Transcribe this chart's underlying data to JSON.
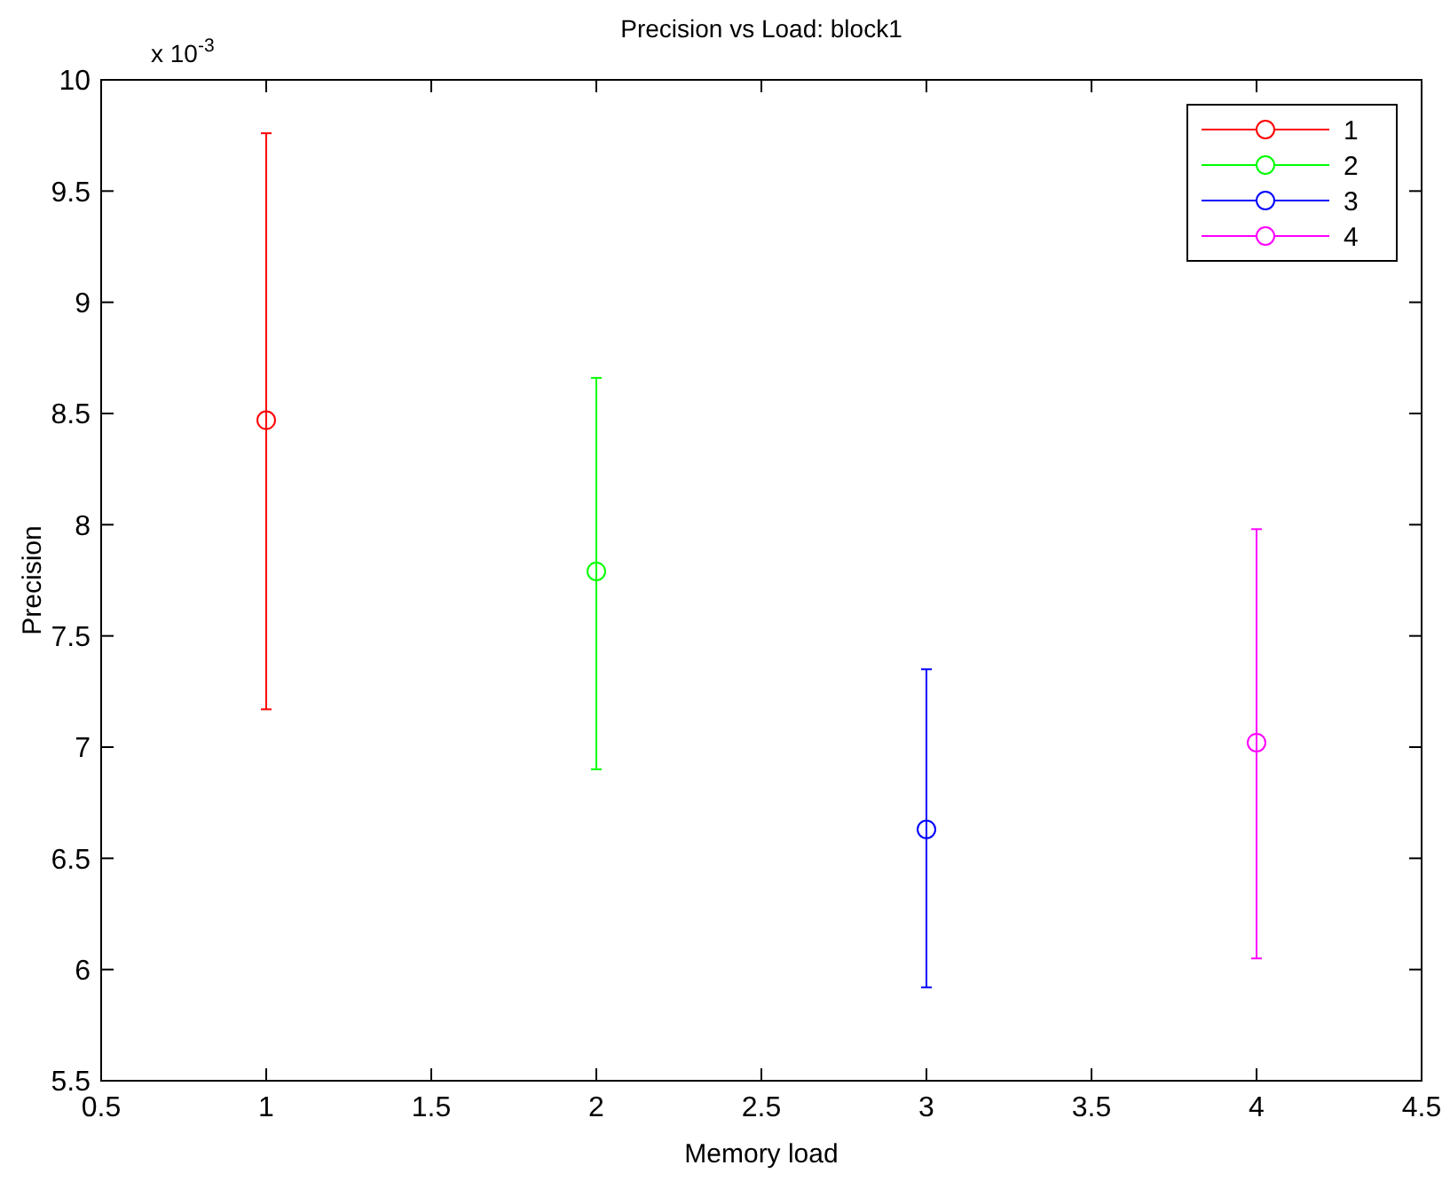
{
  "chart_data": {
    "type": "line",
    "title": "Precision vs Load: block1",
    "xlabel": "Memory load",
    "ylabel": "Precision",
    "annotations": [
      "x 10$^{-3}$"
    ],
    "xlim": [
      0.5,
      4.5
    ],
    "xticks": [
      0.5,
      1,
      1.5,
      2,
      2.5,
      3,
      3.5,
      4,
      4.5
    ],
    "ylim": [
      5.5,
      10
    ],
    "yticks": [
      5.5,
      6,
      6.5,
      7,
      7.5,
      8,
      8.5,
      9,
      9.5,
      10
    ],
    "grid": false,
    "legend": "top right",
    "marker": "circle",
    "line_style": "solid",
    "series": [
      {
        "name": "1",
        "color": "#ff0000",
        "x": [
          1
        ],
        "values": [
          8.47
        ],
        "errors": [
          [
            7.17,
            9.76
          ]
        ]
      },
      {
        "name": "2",
        "color": "#00ff00",
        "x": [
          2
        ],
        "values": [
          7.79
        ],
        "errors": [
          [
            6.9,
            8.66
          ]
        ]
      },
      {
        "name": "3",
        "color": "#0000ff",
        "x": [
          3
        ],
        "values": [
          6.63
        ],
        "errors": [
          [
            5.92,
            7.35
          ]
        ]
      },
      {
        "name": "4",
        "color": "#ff00ff",
        "x": [
          4
        ],
        "values": [
          7.02
        ],
        "errors": [
          [
            6.05,
            7.98
          ]
        ]
      }
    ]
  }
}
